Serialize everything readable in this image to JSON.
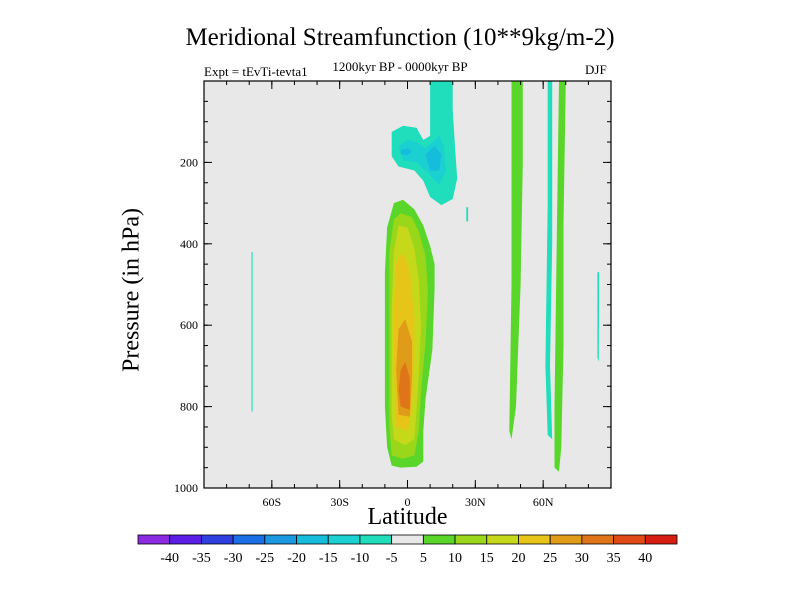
{
  "chart_data": {
    "type": "heatmap",
    "title": "Meridional Streamfunction (10**9kg/m-2)",
    "subtitle_left": "Expt = tEvTi-tevta1",
    "subtitle_center": "1200kyr BP - 0000kyr BP",
    "subtitle_right": "DJF",
    "xlabel": "Latitude",
    "ylabel": "Pressure (in hPa)",
    "xlim": [
      -90,
      90
    ],
    "ylim": [
      1000,
      0
    ],
    "x_ticks": [
      {
        "value": -60,
        "label": "60S"
      },
      {
        "value": -30,
        "label": "30S"
      },
      {
        "value": 0,
        "label": "0"
      },
      {
        "value": 30,
        "label": "30N"
      },
      {
        "value": 60,
        "label": "60N"
      }
    ],
    "y_ticks": [
      {
        "value": 200,
        "label": "200"
      },
      {
        "value": 400,
        "label": "400"
      },
      {
        "value": 600,
        "label": "600"
      },
      {
        "value": 800,
        "label": "800"
      },
      {
        "value": 1000,
        "label": "1000"
      }
    ],
    "colorbar": {
      "labels": [
        "-40",
        "-35",
        "-30",
        "-25",
        "-20",
        "-15",
        "-10",
        "-5",
        "5",
        "10",
        "15",
        "20",
        "25",
        "30",
        "35",
        "40"
      ],
      "colors": [
        "#8a2be2",
        "#5a1ee6",
        "#2f3fe0",
        "#1a6ee6",
        "#1b98e0",
        "#16bcdc",
        "#1ad0d0",
        "#20ddbb",
        "#e8e8e8",
        "#5ad62a",
        "#9ad61a",
        "#c6d81a",
        "#e6c418",
        "#e09c18",
        "#e07418",
        "#e04a16",
        "#d81e12"
      ]
    },
    "regions": [
      {
        "name": "tropical-positive-cell",
        "level": 5,
        "points": [
          [
            -7,
            945
          ],
          [
            -3,
            950
          ],
          [
            4,
            948
          ],
          [
            7,
            935
          ],
          [
            7,
            860
          ],
          [
            8,
            780
          ],
          [
            11,
            660
          ],
          [
            12,
            510
          ],
          [
            12,
            450
          ],
          [
            10,
            405
          ],
          [
            7,
            355
          ],
          [
            3,
            315
          ],
          [
            -2,
            292
          ],
          [
            -6,
            300
          ],
          [
            -9,
            360
          ],
          [
            -10,
            470
          ],
          [
            -10,
            650
          ],
          [
            -10,
            800
          ],
          [
            -9,
            900
          ]
        ]
      },
      {
        "name": "tropical-positive-cell",
        "level": 10,
        "points": [
          [
            -7,
            920
          ],
          [
            -2,
            928
          ],
          [
            3,
            920
          ],
          [
            5,
            860
          ],
          [
            6,
            760
          ],
          [
            8,
            640
          ],
          [
            9,
            520
          ],
          [
            8,
            430
          ],
          [
            5,
            370
          ],
          [
            2,
            335
          ],
          [
            -3,
            325
          ],
          [
            -6,
            340
          ],
          [
            -8,
            420
          ],
          [
            -8,
            550
          ],
          [
            -8,
            720
          ],
          [
            -8,
            850
          ]
        ]
      },
      {
        "name": "tropical-positive-cell",
        "level": 15,
        "points": [
          [
            -6,
            880
          ],
          [
            -1,
            895
          ],
          [
            3,
            880
          ],
          [
            4,
            810
          ],
          [
            5,
            720
          ],
          [
            6,
            600
          ],
          [
            5,
            490
          ],
          [
            3,
            410
          ],
          [
            0,
            360
          ],
          [
            -4,
            355
          ],
          [
            -6,
            420
          ],
          [
            -7,
            560
          ],
          [
            -7,
            720
          ],
          [
            -7,
            820
          ]
        ]
      },
      {
        "name": "tropical-positive-cell",
        "level": 20,
        "points": [
          [
            -5,
            850
          ],
          [
            0,
            860
          ],
          [
            2,
            800
          ],
          [
            3,
            700
          ],
          [
            3,
            580
          ],
          [
            1,
            470
          ],
          [
            -2,
            420
          ],
          [
            -5,
            450
          ],
          [
            -6,
            560
          ],
          [
            -6,
            700
          ]
        ]
      },
      {
        "name": "tropical-positive-cell",
        "level": 25,
        "points": [
          [
            -4,
            820
          ],
          [
            1,
            825
          ],
          [
            2,
            730
          ],
          [
            2,
            640
          ],
          [
            -1,
            585
          ],
          [
            -4,
            610
          ],
          [
            -5,
            710
          ]
        ]
      },
      {
        "name": "tropical-positive-cell",
        "level": 30,
        "points": [
          [
            -3,
            800
          ],
          [
            1,
            808
          ],
          [
            1,
            730
          ],
          [
            -1,
            690
          ],
          [
            -3,
            710
          ],
          [
            -4,
            760
          ]
        ]
      },
      {
        "name": "upper-tropical-negative-cell",
        "level": -5,
        "points": [
          [
            -7,
            125
          ],
          [
            -2,
            110
          ],
          [
            4,
            115
          ],
          [
            7,
            145
          ],
          [
            10,
            135
          ],
          [
            10,
            0
          ],
          [
            20,
            0
          ],
          [
            20,
            70
          ],
          [
            21,
            160
          ],
          [
            22,
            240
          ],
          [
            20,
            290
          ],
          [
            15,
            305
          ],
          [
            10,
            285
          ],
          [
            7,
            245
          ],
          [
            3,
            220
          ],
          [
            -4,
            210
          ],
          [
            -7,
            185
          ]
        ]
      },
      {
        "name": "upper-tropical-negative-cell",
        "level": -10,
        "points": [
          [
            -4,
            160
          ],
          [
            0,
            145
          ],
          [
            4,
            150
          ],
          [
            8,
            165
          ],
          [
            11,
            150
          ],
          [
            14,
            135
          ],
          [
            16,
            160
          ],
          [
            17,
            220
          ],
          [
            14,
            255
          ],
          [
            9,
            225
          ],
          [
            4,
            200
          ],
          [
            -2,
            195
          ]
        ]
      },
      {
        "name": "upper-tropical-negative-cell",
        "level": -15,
        "points": [
          [
            8,
            180
          ],
          [
            12,
            160
          ],
          [
            15,
            180
          ],
          [
            14,
            220
          ],
          [
            10,
            220
          ]
        ]
      },
      {
        "name": "upper-tropical-negative-cell",
        "level": -15,
        "points": [
          [
            -3,
            170
          ],
          [
            0,
            165
          ],
          [
            2,
            172
          ],
          [
            0,
            182
          ],
          [
            -3,
            180
          ]
        ]
      },
      {
        "name": "northern-midlatitude-positive-band",
        "level": 5,
        "points": [
          [
            46,
            0
          ],
          [
            51,
            0
          ],
          [
            51,
            200
          ],
          [
            50,
            500
          ],
          [
            48,
            800
          ],
          [
            46,
            880
          ],
          [
            45,
            860
          ],
          [
            46,
            500
          ]
        ]
      },
      {
        "name": "northern-subpolar-positive-band",
        "level": 5,
        "points": [
          [
            67,
            0
          ],
          [
            70,
            0
          ],
          [
            69,
            350
          ],
          [
            69,
            650
          ],
          [
            68,
            900
          ],
          [
            67,
            960
          ],
          [
            65,
            950
          ],
          [
            65,
            800
          ],
          [
            66,
            400
          ]
        ]
      },
      {
        "name": "northern-narrow-negative-band",
        "level": -5,
        "points": [
          [
            62,
            0
          ],
          [
            64,
            0
          ],
          [
            64,
            400
          ],
          [
            63,
            700
          ],
          [
            64,
            880
          ],
          [
            62,
            870
          ],
          [
            61,
            700
          ],
          [
            62,
            300
          ]
        ]
      },
      {
        "name": "southern-thin-negative-band",
        "level": -5,
        "points": [
          [
            -69,
            420
          ],
          [
            -68.5,
            420
          ],
          [
            -68.5,
            810
          ],
          [
            -69,
            815
          ]
        ]
      },
      {
        "name": "polar-thin-negative-band",
        "level": -5,
        "points": [
          [
            84,
            470
          ],
          [
            84.8,
            470
          ],
          [
            84.6,
            690
          ],
          [
            84,
            680
          ]
        ]
      },
      {
        "name": "small-negative-speck",
        "level": -5,
        "points": [
          [
            26,
            310
          ],
          [
            26.8,
            310
          ],
          [
            26.8,
            345
          ],
          [
            26,
            345
          ]
        ]
      }
    ]
  }
}
